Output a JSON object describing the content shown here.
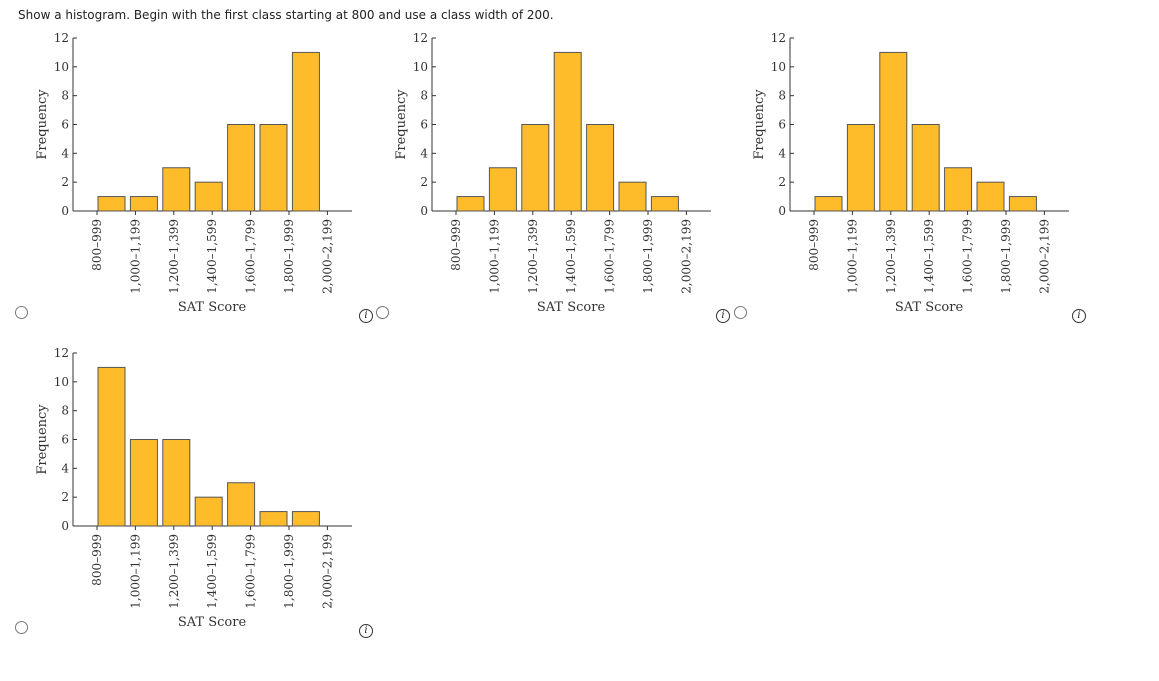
{
  "question": {
    "prompt": "Show a histogram. Begin with the first class starting at 800 and use a class width of 200."
  },
  "colors": {
    "bar_fill": "#FFBC2A",
    "bar_stroke": "#555555",
    "axis": "#333333"
  },
  "icons": {
    "option_radio": "radio-button",
    "info": "info-icon"
  },
  "chart_data": [
    {
      "type": "bar",
      "option": 1,
      "categories": [
        "800–999",
        "1,000–1,199",
        "1,200–1,399",
        "1,400–1,599",
        "1,600–1,799",
        "1,800–1,999",
        "2,000–2,199"
      ],
      "values": [
        1,
        1,
        3,
        2,
        6,
        6,
        11
      ],
      "xlabel": "SAT Score",
      "ylabel": "Frequency",
      "ylim": [
        0,
        12
      ],
      "yticks": [
        0,
        2,
        4,
        6,
        8,
        10,
        12
      ],
      "grid": false
    },
    {
      "type": "bar",
      "option": 2,
      "categories": [
        "800–999",
        "1,000–1,199",
        "1,200–1,399",
        "1,400–1,599",
        "1,600–1,799",
        "1,800–1,999",
        "2,000–2,199"
      ],
      "values": [
        1,
        3,
        6,
        11,
        6,
        2,
        1
      ],
      "xlabel": "SAT Score",
      "ylabel": "Frequency",
      "ylim": [
        0,
        12
      ],
      "yticks": [
        0,
        2,
        4,
        6,
        8,
        10,
        12
      ],
      "grid": false
    },
    {
      "type": "bar",
      "option": 3,
      "categories": [
        "800–999",
        "1,000–1,199",
        "1,200–1,399",
        "1,400–1,599",
        "1,600–1,799",
        "1,800–1,999",
        "2,000–2,199"
      ],
      "values": [
        1,
        6,
        11,
        6,
        3,
        2,
        1
      ],
      "xlabel": "SAT Score",
      "ylabel": "Frequency",
      "ylim": [
        0,
        12
      ],
      "yticks": [
        0,
        2,
        4,
        6,
        8,
        10,
        12
      ],
      "grid": false
    },
    {
      "type": "bar",
      "option": 4,
      "categories": [
        "800–999",
        "1,000–1,199",
        "1,200–1,399",
        "1,400–1,599",
        "1,600–1,799",
        "1,800–1,999",
        "2,000–2,199"
      ],
      "values": [
        11,
        6,
        6,
        2,
        3,
        1,
        1
      ],
      "xlabel": "SAT Score",
      "ylabel": "Frequency",
      "ylim": [
        0,
        12
      ],
      "yticks": [
        0,
        2,
        4,
        6,
        8,
        10,
        12
      ],
      "grid": false
    }
  ]
}
